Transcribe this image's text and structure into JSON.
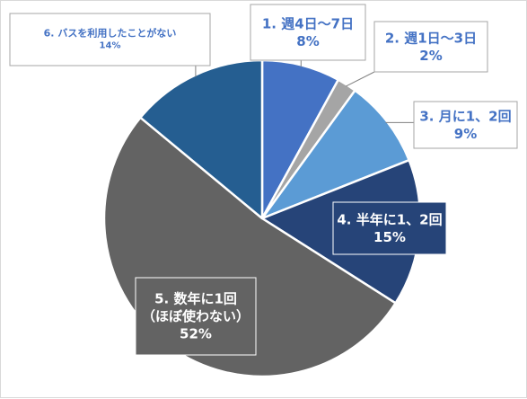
{
  "chart_data": {
    "type": "pie",
    "title": "",
    "start_angle_deg": 0,
    "direction": "clockwise",
    "slices": [
      {
        "label": "1. 週4日～7日",
        "value": 8,
        "value_label": "8%",
        "color": "#4472c4",
        "label_color": "#4472c4"
      },
      {
        "label": "2. 週1日～3日",
        "value": 2,
        "value_label": "2%",
        "color": "#a5a5a5",
        "label_color": "#4472c4"
      },
      {
        "label": "3. 月に1、2回",
        "value": 9,
        "value_label": "9%",
        "color": "#5b9bd5",
        "label_color": "#4472c4"
      },
      {
        "label": "4. 半年に1、2回",
        "value": 15,
        "value_label": "15%",
        "color": "#264478",
        "label_color": "#ffffff"
      },
      {
        "label": "5. 数年に1回\n（ほぼ使わない）",
        "value": 52,
        "value_label": "52%",
        "color": "#636363",
        "label_color": "#ffffff"
      },
      {
        "label": "6. バスを利用したことがない",
        "value": 14,
        "value_label": "14%",
        "color": "#255e91",
        "label_color": "#4472c4"
      }
    ]
  }
}
